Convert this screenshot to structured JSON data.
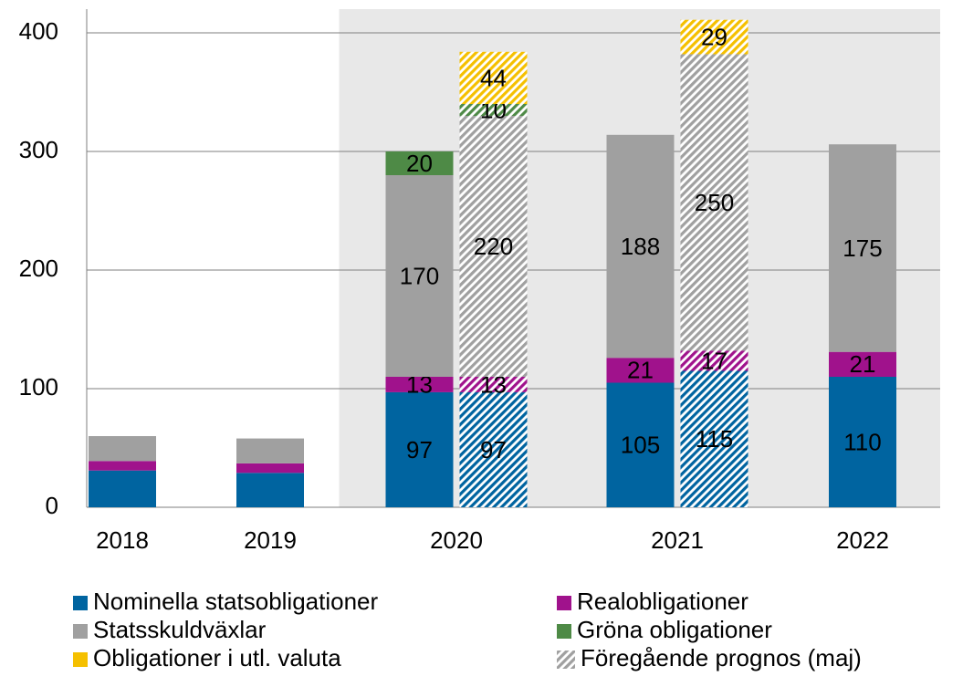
{
  "chart_data": {
    "type": "stacked-bar",
    "categories": [
      "2018",
      "2019",
      "2020",
      "2021",
      "2022"
    ],
    "forecast_start": 2,
    "previous_name": "Föregående prognos (maj)",
    "series": [
      {
        "name": "Nominella statsobligationer",
        "color": "#0064a0",
        "values": [
          31,
          29,
          97,
          105,
          110
        ],
        "previous_values": [
          null,
          null,
          97,
          115,
          null
        ]
      },
      {
        "name": "Realobligationer",
        "color": "#a0128c",
        "values": [
          8,
          8,
          13,
          21,
          21
        ],
        "previous_values": [
          null,
          null,
          13,
          17,
          null
        ]
      },
      {
        "name": "Statsskuldväxlar",
        "color": "#a0a0a0",
        "values": [
          21,
          21,
          170,
          188,
          175
        ],
        "previous_values": [
          null,
          null,
          220,
          250,
          null
        ]
      },
      {
        "name": "Gröna obligationer",
        "color": "#4e8a46",
        "values": [
          null,
          null,
          20,
          null,
          null
        ],
        "previous_values": [
          null,
          null,
          10,
          null,
          null
        ]
      },
      {
        "name": "Obligationer i utl. valuta",
        "color": "#f5c000",
        "values": [
          null,
          null,
          null,
          null,
          null
        ],
        "previous_values": [
          null,
          null,
          44,
          29,
          null
        ]
      }
    ],
    "ylim": [
      0,
      420
    ],
    "yticks": [
      0,
      100,
      200,
      300,
      400
    ],
    "grid": true
  }
}
